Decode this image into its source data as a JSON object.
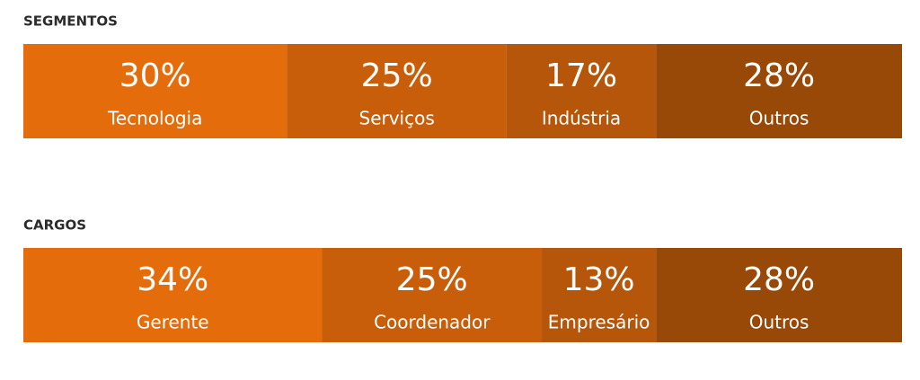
{
  "chart_data": [
    {
      "type": "stacked-bar",
      "title": "SEGMENTOS",
      "categories": [
        "Tecnologia",
        "Serviços",
        "Indústria",
        "Outros"
      ],
      "values": [
        30,
        25,
        17,
        28
      ],
      "value_labels": [
        "30%",
        "25%",
        "17%",
        "28%"
      ],
      "colors": [
        "#e46c0a",
        "#c85e0a",
        "#b5560b",
        "#984807"
      ]
    },
    {
      "type": "stacked-bar",
      "title": "CARGOS",
      "categories": [
        "Gerente",
        "Coordenador",
        "Empresário",
        "Outros"
      ],
      "values": [
        34,
        25,
        13,
        28
      ],
      "value_labels": [
        "34%",
        "25%",
        "13%",
        "28%"
      ],
      "colors": [
        "#e46c0a",
        "#c85e0a",
        "#b5560b",
        "#984807"
      ]
    }
  ]
}
